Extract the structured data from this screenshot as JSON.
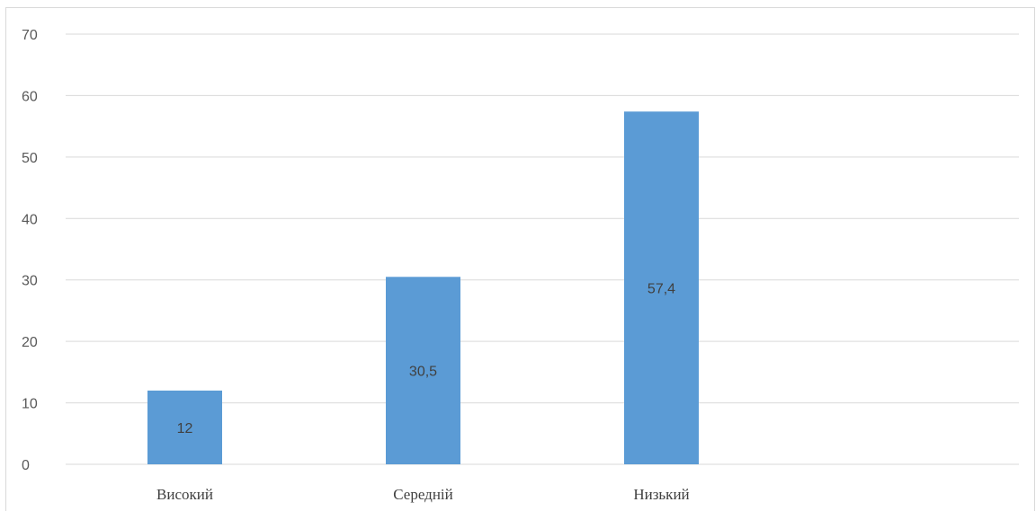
{
  "chart_data": {
    "type": "bar",
    "categories": [
      "Високий",
      "Середній",
      "Низький"
    ],
    "values": [
      12,
      30.5,
      57.4
    ],
    "data_labels": [
      "12",
      "30,5",
      "57,4"
    ],
    "title": "",
    "xlabel": "",
    "ylabel": "",
    "ylim": [
      0,
      70
    ],
    "yticks": [
      0,
      10,
      20,
      30,
      40,
      50,
      60,
      70
    ],
    "ytick_labels": [
      "0",
      "10",
      "20",
      "30",
      "40",
      "50",
      "60",
      "70"
    ],
    "grid": true,
    "legend": "none",
    "bar_color": "#5b9bd5",
    "grid_color": "#d9d9d9"
  }
}
